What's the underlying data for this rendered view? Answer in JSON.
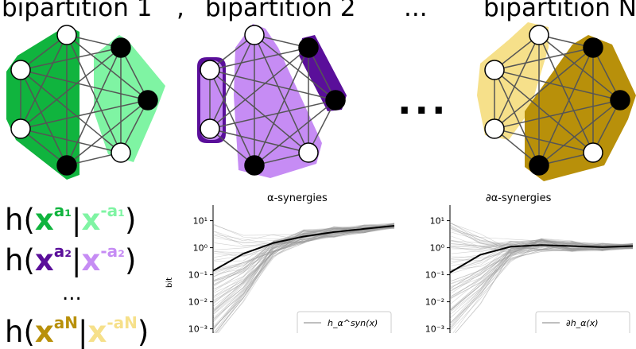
{
  "headers": {
    "bip1": "bipartition 1",
    "comma": ",",
    "bip2": "bipartition 2",
    "dots_top": "...",
    "bipN": "bipartition N",
    "dots_mid": "..."
  },
  "equations": [
    {
      "left": "h(",
      "x": "x",
      "sup_a": "a₁",
      "bar": "|",
      "sup_na": "-a₁",
      "right": ")",
      "color_main": "#10b43e",
      "color_comp": "#7ff4a3"
    },
    {
      "left": "h(",
      "x": "x",
      "sup_a": "a₂",
      "bar": "|",
      "sup_na": "-a₂",
      "right": ")",
      "color_main": "#5a0f9a",
      "color_comp": "#c68cf4"
    },
    {
      "dots": "..."
    },
    {
      "left": "h(",
      "x": "x",
      "sup_a": "aN",
      "bar": "|",
      "sup_na": "-aN",
      "right": ")",
      "color_main": "#b8900a",
      "color_comp": "#f6e08a"
    }
  ],
  "colors": {
    "green_dark": "#10b43e",
    "green_light": "#7ff4a3",
    "purple_dark": "#5a0f9a",
    "purple_light": "#c68cf4",
    "gold_dark": "#b8900a",
    "gold_light": "#f6e08a"
  },
  "chart_data": [
    {
      "type": "line",
      "title": "α-synergies",
      "ylabel": "bit",
      "yscale": "log",
      "ylim": [
        0.0005,
        30
      ],
      "yticks": [
        "10¹",
        "10⁰",
        "10⁻¹",
        "10⁻²",
        "10⁻³"
      ],
      "legend": "h_α^syn(x)",
      "legend_position": "bottom-right",
      "series": [
        {
          "x": [
            1,
            2,
            3,
            4,
            5,
            6,
            7
          ],
          "values": [
            0.14,
            0.6,
            1.5,
            2.6,
            3.8,
            5.0,
            6.5
          ]
        }
      ]
    },
    {
      "type": "line",
      "title": "∂α-synergies",
      "yscale": "log",
      "ylim": [
        0.0005,
        30
      ],
      "yticks": [
        "10¹",
        "10⁰",
        "10⁻¹",
        "10⁻²",
        "10⁻³"
      ],
      "legend": "∂h_α(x)",
      "legend_position": "bottom-right",
      "series": [
        {
          "x": [
            1,
            2,
            3,
            4,
            5,
            6,
            7
          ],
          "values": [
            0.12,
            0.55,
            1.1,
            1.25,
            1.15,
            1.05,
            1.15
          ]
        }
      ]
    }
  ]
}
